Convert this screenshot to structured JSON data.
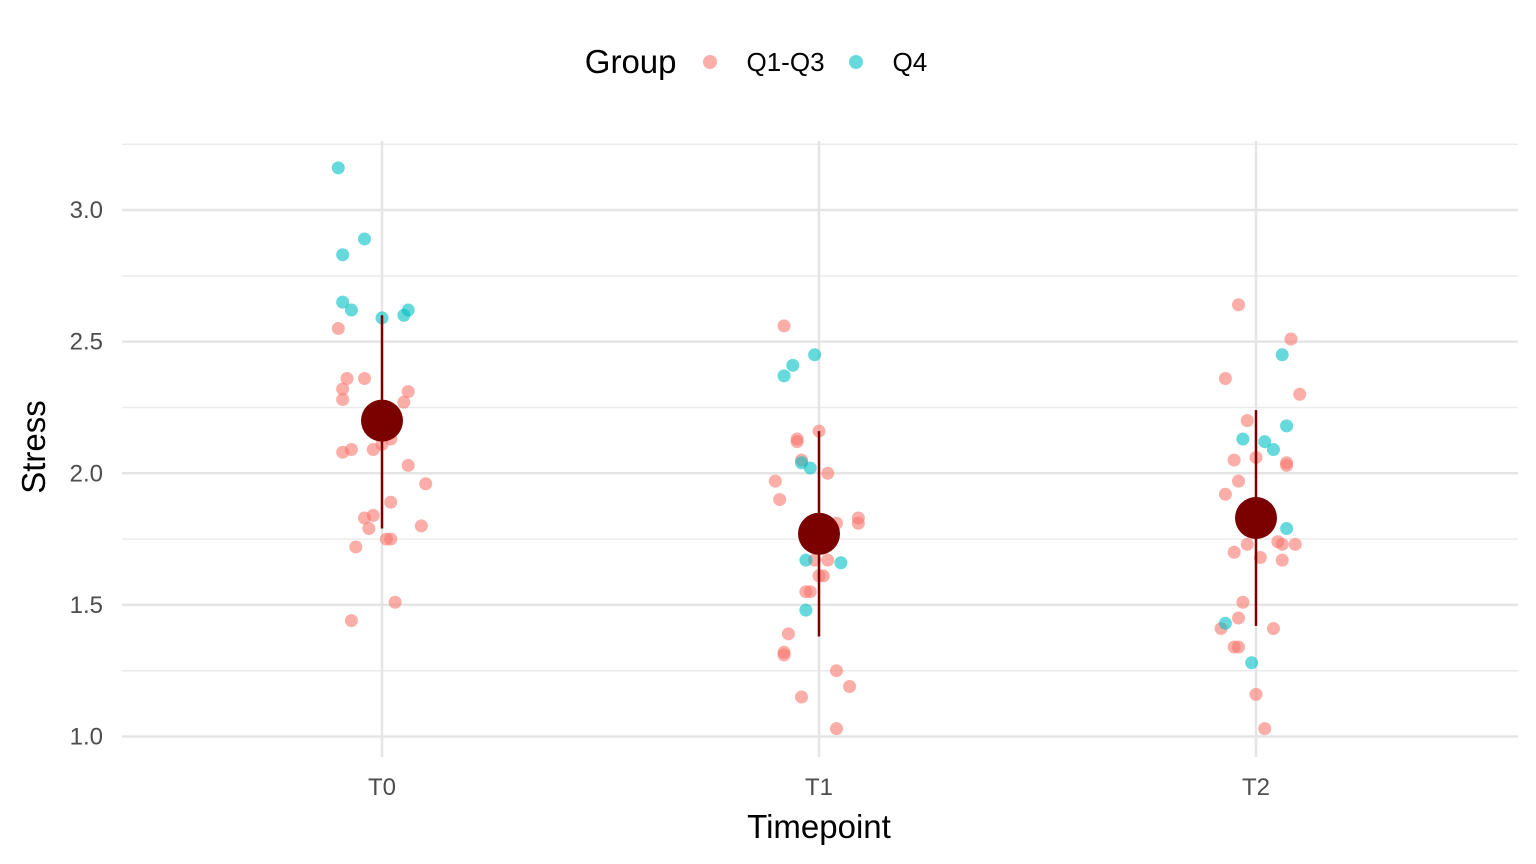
{
  "chart_data": {
    "type": "scatter",
    "title": "",
    "xlabel": "Timepoint",
    "ylabel": "Stress",
    "categories": [
      "T0",
      "T1",
      "T2"
    ],
    "ylim": [
      0.95,
      3.25
    ],
    "yticks": [
      "1.0",
      "1.5",
      "2.0",
      "2.5",
      "3.0"
    ],
    "ytick_values": [
      1.0,
      1.5,
      2.0,
      2.5,
      3.0
    ],
    "grid": true,
    "legend": {
      "title": "Group",
      "position": "top"
    },
    "series": [
      {
        "name": "Q1-Q3",
        "color": "#F8766D",
        "points": [
          {
            "x": "T0",
            "jitter": -0.1,
            "y": 2.55
          },
          {
            "x": "T0",
            "jitter": -0.09,
            "y": 2.32
          },
          {
            "x": "T0",
            "jitter": -0.08,
            "y": 2.36
          },
          {
            "x": "T0",
            "jitter": -0.09,
            "y": 2.28
          },
          {
            "x": "T0",
            "jitter": -0.04,
            "y": 2.36
          },
          {
            "x": "T0",
            "jitter": 0.06,
            "y": 2.31
          },
          {
            "x": "T0",
            "jitter": 0.05,
            "y": 2.27
          },
          {
            "x": "T0",
            "jitter": 0.02,
            "y": 2.21
          },
          {
            "x": "T0",
            "jitter": -0.09,
            "y": 2.08
          },
          {
            "x": "T0",
            "jitter": -0.07,
            "y": 2.09
          },
          {
            "x": "T0",
            "jitter": -0.02,
            "y": 2.09
          },
          {
            "x": "T0",
            "jitter": 0.0,
            "y": 2.11
          },
          {
            "x": "T0",
            "jitter": 0.02,
            "y": 2.13
          },
          {
            "x": "T0",
            "jitter": 0.06,
            "y": 2.03
          },
          {
            "x": "T0",
            "jitter": 0.1,
            "y": 1.96
          },
          {
            "x": "T0",
            "jitter": 0.02,
            "y": 1.89
          },
          {
            "x": "T0",
            "jitter": -0.04,
            "y": 1.83
          },
          {
            "x": "T0",
            "jitter": -0.02,
            "y": 1.84
          },
          {
            "x": "T0",
            "jitter": -0.03,
            "y": 1.79
          },
          {
            "x": "T0",
            "jitter": 0.09,
            "y": 1.8
          },
          {
            "x": "T0",
            "jitter": 0.01,
            "y": 1.75
          },
          {
            "x": "T0",
            "jitter": 0.02,
            "y": 1.75
          },
          {
            "x": "T0",
            "jitter": -0.06,
            "y": 1.72
          },
          {
            "x": "T0",
            "jitter": 0.03,
            "y": 1.51
          },
          {
            "x": "T0",
            "jitter": -0.07,
            "y": 1.44
          },
          {
            "x": "T1",
            "jitter": -0.08,
            "y": 2.56
          },
          {
            "x": "T1",
            "jitter": 0.0,
            "y": 2.16
          },
          {
            "x": "T1",
            "jitter": -0.05,
            "y": 2.13
          },
          {
            "x": "T1",
            "jitter": -0.05,
            "y": 2.12
          },
          {
            "x": "T1",
            "jitter": -0.04,
            "y": 2.05
          },
          {
            "x": "T1",
            "jitter": 0.02,
            "y": 2.0
          },
          {
            "x": "T1",
            "jitter": -0.1,
            "y": 1.97
          },
          {
            "x": "T1",
            "jitter": -0.09,
            "y": 1.9
          },
          {
            "x": "T1",
            "jitter": 0.09,
            "y": 1.83
          },
          {
            "x": "T1",
            "jitter": 0.09,
            "y": 1.81
          },
          {
            "x": "T1",
            "jitter": 0.04,
            "y": 1.81
          },
          {
            "x": "T1",
            "jitter": 0.02,
            "y": 1.74
          },
          {
            "x": "T1",
            "jitter": 0.02,
            "y": 1.67
          },
          {
            "x": "T1",
            "jitter": -0.01,
            "y": 1.67
          },
          {
            "x": "T1",
            "jitter": 0.0,
            "y": 1.61
          },
          {
            "x": "T1",
            "jitter": 0.01,
            "y": 1.61
          },
          {
            "x": "T1",
            "jitter": -0.03,
            "y": 1.55
          },
          {
            "x": "T1",
            "jitter": -0.02,
            "y": 1.55
          },
          {
            "x": "T1",
            "jitter": -0.07,
            "y": 1.39
          },
          {
            "x": "T1",
            "jitter": -0.08,
            "y": 1.32
          },
          {
            "x": "T1",
            "jitter": -0.08,
            "y": 1.31
          },
          {
            "x": "T1",
            "jitter": 0.04,
            "y": 1.25
          },
          {
            "x": "T1",
            "jitter": 0.07,
            "y": 1.19
          },
          {
            "x": "T1",
            "jitter": -0.04,
            "y": 1.15
          },
          {
            "x": "T1",
            "jitter": 0.04,
            "y": 1.03
          },
          {
            "x": "T2",
            "jitter": -0.04,
            "y": 2.64
          },
          {
            "x": "T2",
            "jitter": 0.08,
            "y": 2.51
          },
          {
            "x": "T2",
            "jitter": -0.07,
            "y": 2.36
          },
          {
            "x": "T2",
            "jitter": 0.1,
            "y": 2.3
          },
          {
            "x": "T2",
            "jitter": -0.02,
            "y": 2.2
          },
          {
            "x": "T2",
            "jitter": 0.0,
            "y": 2.06
          },
          {
            "x": "T2",
            "jitter": -0.05,
            "y": 2.05
          },
          {
            "x": "T2",
            "jitter": 0.07,
            "y": 2.03
          },
          {
            "x": "T2",
            "jitter": 0.07,
            "y": 2.04
          },
          {
            "x": "T2",
            "jitter": -0.04,
            "y": 1.97
          },
          {
            "x": "T2",
            "jitter": -0.07,
            "y": 1.92
          },
          {
            "x": "T2",
            "jitter": 0.05,
            "y": 1.74
          },
          {
            "x": "T2",
            "jitter": 0.06,
            "y": 1.73
          },
          {
            "x": "T2",
            "jitter": 0.09,
            "y": 1.73
          },
          {
            "x": "T2",
            "jitter": -0.02,
            "y": 1.73
          },
          {
            "x": "T2",
            "jitter": -0.05,
            "y": 1.7
          },
          {
            "x": "T2",
            "jitter": 0.01,
            "y": 1.68
          },
          {
            "x": "T2",
            "jitter": 0.06,
            "y": 1.67
          },
          {
            "x": "T2",
            "jitter": -0.03,
            "y": 1.51
          },
          {
            "x": "T2",
            "jitter": -0.04,
            "y": 1.45
          },
          {
            "x": "T2",
            "jitter": -0.08,
            "y": 1.41
          },
          {
            "x": "T2",
            "jitter": 0.04,
            "y": 1.41
          },
          {
            "x": "T2",
            "jitter": -0.05,
            "y": 1.34
          },
          {
            "x": "T2",
            "jitter": -0.04,
            "y": 1.34
          },
          {
            "x": "T2",
            "jitter": 0.0,
            "y": 1.16
          },
          {
            "x": "T2",
            "jitter": 0.02,
            "y": 1.03
          }
        ]
      },
      {
        "name": "Q4",
        "color": "#00BFC4",
        "points": [
          {
            "x": "T0",
            "jitter": -0.1,
            "y": 3.16
          },
          {
            "x": "T0",
            "jitter": -0.04,
            "y": 2.89
          },
          {
            "x": "T0",
            "jitter": -0.09,
            "y": 2.83
          },
          {
            "x": "T0",
            "jitter": -0.09,
            "y": 2.65
          },
          {
            "x": "T0",
            "jitter": -0.07,
            "y": 2.62
          },
          {
            "x": "T0",
            "jitter": 0.06,
            "y": 2.62
          },
          {
            "x": "T0",
            "jitter": 0.05,
            "y": 2.6
          },
          {
            "x": "T0",
            "jitter": 0.0,
            "y": 2.59
          },
          {
            "x": "T1",
            "jitter": -0.01,
            "y": 2.45
          },
          {
            "x": "T1",
            "jitter": -0.06,
            "y": 2.41
          },
          {
            "x": "T1",
            "jitter": -0.08,
            "y": 2.37
          },
          {
            "x": "T1",
            "jitter": -0.04,
            "y": 2.04
          },
          {
            "x": "T1",
            "jitter": -0.02,
            "y": 2.02
          },
          {
            "x": "T1",
            "jitter": -0.03,
            "y": 1.67
          },
          {
            "x": "T1",
            "jitter": 0.05,
            "y": 1.66
          },
          {
            "x": "T1",
            "jitter": -0.03,
            "y": 1.48
          },
          {
            "x": "T2",
            "jitter": 0.06,
            "y": 2.45
          },
          {
            "x": "T2",
            "jitter": 0.07,
            "y": 2.18
          },
          {
            "x": "T2",
            "jitter": -0.03,
            "y": 2.13
          },
          {
            "x": "T2",
            "jitter": 0.02,
            "y": 2.12
          },
          {
            "x": "T2",
            "jitter": 0.04,
            "y": 2.09
          },
          {
            "x": "T2",
            "jitter": 0.07,
            "y": 1.79
          },
          {
            "x": "T2",
            "jitter": -0.07,
            "y": 1.43
          },
          {
            "x": "T2",
            "jitter": -0.01,
            "y": 1.28
          }
        ]
      }
    ],
    "summary": {
      "color": "#7B0000",
      "points": [
        {
          "x": "T0",
          "mean": 2.2,
          "low": 1.79,
          "high": 2.6
        },
        {
          "x": "T1",
          "mean": 1.77,
          "low": 1.38,
          "high": 2.16
        },
        {
          "x": "T2",
          "mean": 1.83,
          "low": 1.42,
          "high": 2.24
        }
      ]
    }
  }
}
